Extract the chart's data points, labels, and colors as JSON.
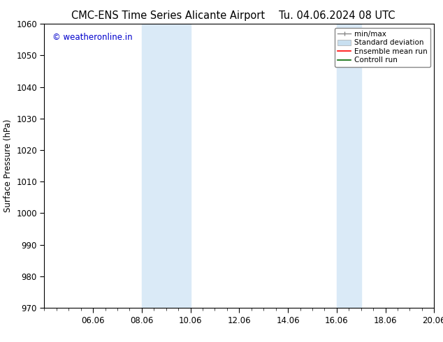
{
  "title_left": "CMC-ENS Time Series Alicante Airport",
  "title_right": "Tu. 04.06.2024 08 UTC",
  "ylabel": "Surface Pressure (hPa)",
  "ylim": [
    970,
    1060
  ],
  "yticks": [
    970,
    980,
    990,
    1000,
    1010,
    1020,
    1030,
    1040,
    1050,
    1060
  ],
  "xlim": [
    0,
    16
  ],
  "xtick_labels": [
    "06.06",
    "08.06",
    "10.06",
    "12.06",
    "14.06",
    "16.06",
    "18.06",
    "20.06"
  ],
  "xtick_positions": [
    2,
    4,
    6,
    8,
    10,
    12,
    14,
    16
  ],
  "shaded_bands": [
    {
      "xmin": 4,
      "xmax": 6
    },
    {
      "xmin": 12,
      "xmax": 13
    }
  ],
  "shaded_color": "#daeaf7",
  "watermark_text": "© weatheronline.in",
  "watermark_color": "#0000cc",
  "bg_color": "#ffffff",
  "font_size": 8.5,
  "title_font_size": 10.5,
  "legend_font_size": 7.5
}
